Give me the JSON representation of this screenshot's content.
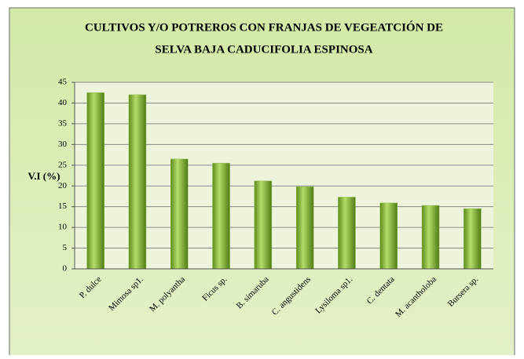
{
  "chart_data": {
    "type": "bar",
    "title": [
      "CULTIVOS Y/O POTREROS  CON FRANJAS DE VEGEATCIÓN DE",
      "SELVA BAJA CADUCIFOLIA ESPINOSA"
    ],
    "y_label": "V.I (%)",
    "categories": [
      "P. dulce",
      "Mimosa sp1.",
      "M. polyantha",
      "Ficus sp.",
      "B. simaruba",
      "C. angustidens",
      "Lysiloma sp1.",
      "C. dentata",
      "M. acantholoba",
      "Bursera sp."
    ],
    "values": [
      42.5,
      42,
      26.5,
      25.5,
      21.2,
      19.8,
      17.3,
      15.9,
      15.3,
      14.5
    ],
    "color": "#8cbc3c",
    "ylim": [
      0,
      45
    ],
    "yticks": [
      0,
      5,
      10,
      15,
      20,
      25,
      30,
      35,
      40,
      45
    ],
    "grid": true
  }
}
